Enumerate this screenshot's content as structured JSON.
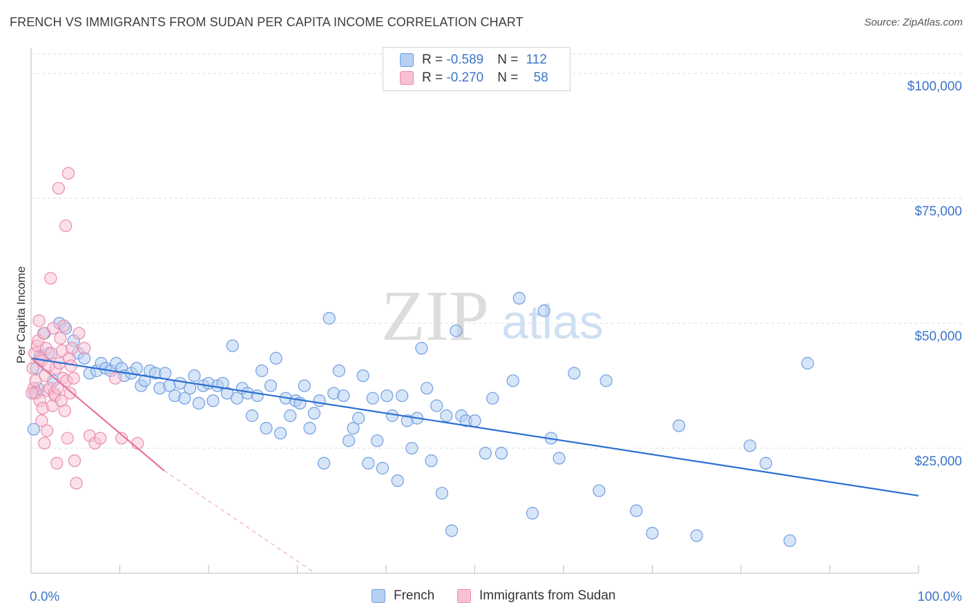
{
  "title": "FRENCH VS IMMIGRANTS FROM SUDAN PER CAPITA INCOME CORRELATION CHART",
  "source": "Source: ZipAtlas.com",
  "watermark": {
    "zip": "ZIP",
    "atlas": "atlas"
  },
  "legend": {
    "series1": {
      "r_label": "R = ",
      "r_value": "-0.589",
      "n_label": "N = ",
      "n_value": "112"
    },
    "series2": {
      "r_label": "R = ",
      "r_value": "-0.270",
      "n_label": "N = ",
      "n_value": "58"
    }
  },
  "colors": {
    "french_fill": "#b6d0f2",
    "french_stroke": "#6f9de0",
    "french_line": "#2a6fd1",
    "sudan_fill": "#f8c1d3",
    "sudan_stroke": "#ea8bab",
    "sudan_line": "#e5749b",
    "axis_label": "#3b74c9",
    "grid": "#dedede"
  },
  "chart_data": {
    "type": "scatter",
    "title": "FRENCH VS IMMIGRANTS FROM SUDAN PER CAPITA INCOME CORRELATION CHART",
    "xlabel": "",
    "ylabel": "Per Capita Income",
    "xlim": [
      0,
      100
    ],
    "ylim": [
      0,
      105000
    ],
    "x_tick_labels": [
      "0.0%",
      "100.0%"
    ],
    "y_ticks": [
      25000,
      50000,
      75000,
      100000
    ],
    "y_tick_labels": [
      "$25,000",
      "$50,000",
      "$75,000",
      "$100,000"
    ],
    "legend_placement": "top-center",
    "series": [
      {
        "name": "French",
        "r": -0.589,
        "n": 112,
        "trend": {
          "x": [
            0,
            100
          ],
          "y": [
            43000,
            15500
          ]
        },
        "points": [
          [
            0.3,
            28800
          ],
          [
            0.4,
            36000
          ],
          [
            0.6,
            41000
          ],
          [
            1,
            43500
          ],
          [
            1.5,
            48000
          ],
          [
            2.5,
            38500
          ],
          [
            3.2,
            50000
          ],
          [
            3.9,
            49000
          ],
          [
            4.8,
            46500
          ],
          [
            5.3,
            44000
          ],
          [
            6.0,
            43000
          ],
          [
            6.6,
            40000
          ],
          [
            7.4,
            40500
          ],
          [
            7.9,
            42000
          ],
          [
            8.4,
            41000
          ],
          [
            9.0,
            40500
          ],
          [
            9.6,
            42000
          ],
          [
            10.2,
            41000
          ],
          [
            10.5,
            39500
          ],
          [
            11.3,
            40000
          ],
          [
            11.9,
            41000
          ],
          [
            12.4,
            37500
          ],
          [
            12.8,
            38500
          ],
          [
            13.4,
            40500
          ],
          [
            14.0,
            40000
          ],
          [
            14.5,
            37000
          ],
          [
            15.1,
            40000
          ],
          [
            15.6,
            37500
          ],
          [
            16.2,
            35500
          ],
          [
            16.8,
            38000
          ],
          [
            17.3,
            35000
          ],
          [
            17.9,
            37000
          ],
          [
            18.4,
            39500
          ],
          [
            18.9,
            34000
          ],
          [
            19.4,
            37500
          ],
          [
            20.0,
            38000
          ],
          [
            20.5,
            34500
          ],
          [
            21.0,
            37500
          ],
          [
            21.6,
            38000
          ],
          [
            22.1,
            36000
          ],
          [
            22.7,
            45500
          ],
          [
            23.2,
            35000
          ],
          [
            23.8,
            37000
          ],
          [
            24.4,
            36000
          ],
          [
            24.9,
            31500
          ],
          [
            25.5,
            35500
          ],
          [
            26.0,
            40500
          ],
          [
            26.5,
            29000
          ],
          [
            27.0,
            37500
          ],
          [
            27.6,
            43000
          ],
          [
            28.1,
            28000
          ],
          [
            28.7,
            35000
          ],
          [
            29.2,
            31500
          ],
          [
            29.8,
            34500
          ],
          [
            30.3,
            34000
          ],
          [
            30.8,
            37500
          ],
          [
            31.4,
            29000
          ],
          [
            31.9,
            32000
          ],
          [
            32.5,
            34500
          ],
          [
            33.0,
            22000
          ],
          [
            33.6,
            51000
          ],
          [
            34.1,
            36000
          ],
          [
            34.7,
            40500
          ],
          [
            35.2,
            35500
          ],
          [
            35.8,
            26500
          ],
          [
            36.3,
            29000
          ],
          [
            36.9,
            31000
          ],
          [
            37.4,
            39500
          ],
          [
            38.0,
            22000
          ],
          [
            38.5,
            35000
          ],
          [
            39.0,
            26500
          ],
          [
            39.6,
            21000
          ],
          [
            40.1,
            35500
          ],
          [
            40.7,
            31500
          ],
          [
            41.3,
            18500
          ],
          [
            41.8,
            35500
          ],
          [
            42.4,
            30500
          ],
          [
            42.9,
            25000
          ],
          [
            43.5,
            31000
          ],
          [
            44.0,
            45000
          ],
          [
            44.6,
            37000
          ],
          [
            45.1,
            22500
          ],
          [
            45.7,
            33500
          ],
          [
            46.3,
            16000
          ],
          [
            46.8,
            31500
          ],
          [
            47.4,
            8500
          ],
          [
            47.9,
            48500
          ],
          [
            48.5,
            31500
          ],
          [
            49.0,
            30500
          ],
          [
            50.0,
            30500
          ],
          [
            51.2,
            24000
          ],
          [
            52.0,
            35000
          ],
          [
            53.0,
            24000
          ],
          [
            54.3,
            38500
          ],
          [
            55.0,
            55000
          ],
          [
            56.5,
            12000
          ],
          [
            57.8,
            52500
          ],
          [
            58.6,
            27000
          ],
          [
            59.5,
            23000
          ],
          [
            61.2,
            40000
          ],
          [
            64.0,
            16500
          ],
          [
            64.8,
            38500
          ],
          [
            68.2,
            12500
          ],
          [
            70.0,
            8000
          ],
          [
            73.0,
            29500
          ],
          [
            75.0,
            7500
          ],
          [
            81.0,
            25500
          ],
          [
            82.8,
            22000
          ],
          [
            85.5,
            6500
          ],
          [
            87.5,
            42000
          ],
          [
            0.8,
            37000
          ],
          [
            2.0,
            44000
          ]
        ]
      },
      {
        "name": "Immigrants from Sudan",
        "r": -0.27,
        "n": 58,
        "trend": {
          "x": [
            0,
            15
          ],
          "y": [
            43000,
            20500
          ]
        },
        "trend_dashed": {
          "x": [
            15,
            32
          ],
          "y": [
            20500,
            0
          ]
        },
        "points": [
          [
            0.2,
            41000
          ],
          [
            0.3,
            37000
          ],
          [
            0.4,
            44000
          ],
          [
            0.5,
            38500
          ],
          [
            0.6,
            36000
          ],
          [
            0.7,
            45500
          ],
          [
            0.8,
            46500
          ],
          [
            0.9,
            50500
          ],
          [
            1.0,
            34500
          ],
          [
            1.1,
            43000
          ],
          [
            1.2,
            30500
          ],
          [
            1.2,
            42500
          ],
          [
            1.3,
            33000
          ],
          [
            1.4,
            48000
          ],
          [
            1.5,
            26000
          ],
          [
            1.6,
            39500
          ],
          [
            1.7,
            45000
          ],
          [
            1.8,
            28500
          ],
          [
            1.9,
            36500
          ],
          [
            2.0,
            41500
          ],
          [
            2.1,
            37000
          ],
          [
            2.2,
            59000
          ],
          [
            2.3,
            44000
          ],
          [
            2.4,
            33500
          ],
          [
            2.5,
            49000
          ],
          [
            2.6,
            36000
          ],
          [
            2.7,
            35500
          ],
          [
            2.8,
            41000
          ],
          [
            2.9,
            22000
          ],
          [
            3.0,
            37000
          ],
          [
            3.1,
            77000
          ],
          [
            3.2,
            42000
          ],
          [
            3.3,
            47000
          ],
          [
            3.4,
            34500
          ],
          [
            3.5,
            44500
          ],
          [
            3.6,
            39000
          ],
          [
            3.7,
            49500
          ],
          [
            3.8,
            32500
          ],
          [
            3.9,
            69500
          ],
          [
            4.0,
            38500
          ],
          [
            4.1,
            27000
          ],
          [
            4.2,
            80000
          ],
          [
            4.3,
            43000
          ],
          [
            4.4,
            36000
          ],
          [
            4.5,
            41500
          ],
          [
            4.6,
            45000
          ],
          [
            4.8,
            39000
          ],
          [
            4.9,
            22500
          ],
          [
            5.1,
            18000
          ],
          [
            5.4,
            48000
          ],
          [
            6.0,
            45000
          ],
          [
            6.6,
            27500
          ],
          [
            7.2,
            26000
          ],
          [
            7.8,
            27000
          ],
          [
            9.5,
            39000
          ],
          [
            10.2,
            27000
          ],
          [
            12.0,
            26000
          ],
          [
            0.1,
            36000
          ]
        ]
      }
    ]
  }
}
